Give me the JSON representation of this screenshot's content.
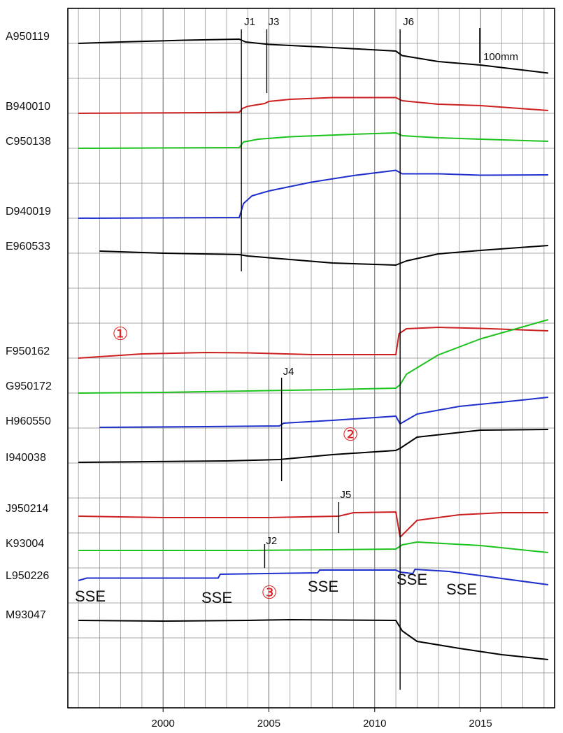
{
  "chart_data": {
    "type": "line",
    "title": "",
    "xlabel": "",
    "ylabel": "",
    "xlim": [
      1995.5,
      2018.5
    ],
    "xticks": [
      2000,
      2005,
      2010,
      2015
    ],
    "xtick_labels": [
      "2000",
      "2005",
      "2010",
      "2015"
    ],
    "grid": true,
    "legend": "none",
    "scale_bar": {
      "label": "100mm",
      "value_mm": 100
    },
    "colors": {
      "red": "#cc1f1f",
      "green": "#1ec21e",
      "blue": "#1f2fcc",
      "black": "#000000",
      "annotation": "#e02020"
    },
    "events": [
      {
        "name": "J1",
        "year": 2003.7
      },
      {
        "name": "J3",
        "year": 2004.9
      },
      {
        "name": "J6",
        "year": 2011.2
      },
      {
        "name": "J4",
        "year": 2005.6
      },
      {
        "name": "J5",
        "year": 2008.3
      },
      {
        "name": "J2",
        "year": 2004.8
      }
    ],
    "annotations": [
      {
        "text": "①",
        "kind": "circled"
      },
      {
        "text": "②",
        "kind": "circled"
      },
      {
        "text": "③",
        "kind": "circled"
      },
      {
        "text": "SSE",
        "kind": "sse"
      },
      {
        "text": "SSE",
        "kind": "sse"
      },
      {
        "text": "SSE",
        "kind": "sse"
      },
      {
        "text": "SSE",
        "kind": "sse"
      },
      {
        "text": "SSE",
        "kind": "sse"
      }
    ],
    "series": [
      {
        "name": "A950119",
        "color": "black",
        "points": [
          [
            1996.0,
            0
          ],
          [
            1998,
            4
          ],
          [
            2001,
            9
          ],
          [
            2003.6,
            12
          ],
          [
            2003.9,
            4
          ],
          [
            2005,
            -3
          ],
          [
            2008,
            -12
          ],
          [
            2011.0,
            -22
          ],
          [
            2011.3,
            -35
          ],
          [
            2013,
            -52
          ],
          [
            2015,
            -62
          ],
          [
            2018.2,
            -85
          ]
        ]
      },
      {
        "name": "B940010",
        "color": "red",
        "points": [
          [
            1996.0,
            0
          ],
          [
            1999,
            1
          ],
          [
            2002,
            2
          ],
          [
            2003.6,
            3
          ],
          [
            2003.75,
            14
          ],
          [
            2004,
            20
          ],
          [
            2004.8,
            28
          ],
          [
            2005,
            34
          ],
          [
            2006,
            40
          ],
          [
            2008,
            45
          ],
          [
            2011.0,
            45
          ],
          [
            2011.3,
            36
          ],
          [
            2013,
            26
          ],
          [
            2015,
            22
          ],
          [
            2018.2,
            8
          ]
        ]
      },
      {
        "name": "C950138",
        "color": "green",
        "points": [
          [
            1996.0,
            0
          ],
          [
            2000,
            1
          ],
          [
            2003.6,
            2
          ],
          [
            2003.8,
            18
          ],
          [
            2004.5,
            26
          ],
          [
            2006,
            33
          ],
          [
            2009,
            40
          ],
          [
            2011.0,
            44
          ],
          [
            2011.3,
            36
          ],
          [
            2013,
            30
          ],
          [
            2015,
            26
          ],
          [
            2018.2,
            20
          ]
        ]
      },
      {
        "name": "D940019",
        "color": "blue",
        "points": [
          [
            1996.0,
            0
          ],
          [
            2000,
            1
          ],
          [
            2003.6,
            2
          ],
          [
            2003.8,
            42
          ],
          [
            2004.2,
            64
          ],
          [
            2005,
            78
          ],
          [
            2007,
            103
          ],
          [
            2009,
            122
          ],
          [
            2011.0,
            137
          ],
          [
            2011.3,
            127
          ],
          [
            2013,
            127
          ],
          [
            2015,
            123
          ],
          [
            2018.2,
            124
          ]
        ]
      },
      {
        "name": "E960533",
        "color": "black",
        "points": [
          [
            1997.0,
            2
          ],
          [
            2000,
            -4
          ],
          [
            2003.6,
            -8
          ],
          [
            2004,
            -12
          ],
          [
            2006,
            -22
          ],
          [
            2008,
            -32
          ],
          [
            2011.0,
            -38
          ],
          [
            2011.5,
            -26
          ],
          [
            2013,
            -6
          ],
          [
            2015,
            4
          ],
          [
            2018.2,
            18
          ]
        ]
      },
      {
        "name": "F950162",
        "color": "red",
        "points": [
          [
            1996.0,
            0
          ],
          [
            1999,
            12
          ],
          [
            2002,
            16
          ],
          [
            2004,
            15
          ],
          [
            2007,
            10
          ],
          [
            2011.0,
            10
          ],
          [
            2011.15,
            70
          ],
          [
            2011.5,
            84
          ],
          [
            2013,
            88
          ],
          [
            2015,
            85
          ],
          [
            2018.2,
            78
          ]
        ]
      },
      {
        "name": "G950172",
        "color": "green",
        "points": [
          [
            1996.0,
            0
          ],
          [
            2000,
            2
          ],
          [
            2004,
            6
          ],
          [
            2008,
            10
          ],
          [
            2011.0,
            14
          ],
          [
            2011.2,
            24
          ],
          [
            2011.5,
            54
          ],
          [
            2013,
            109
          ],
          [
            2015,
            155
          ],
          [
            2018.2,
            210
          ]
        ]
      },
      {
        "name": "H960550",
        "color": "blue",
        "points": [
          [
            1997.0,
            0
          ],
          [
            2002,
            2
          ],
          [
            2005.5,
            4
          ],
          [
            2005.7,
            12
          ],
          [
            2008,
            20
          ],
          [
            2011.0,
            32
          ],
          [
            2011.2,
            10
          ],
          [
            2012,
            38
          ],
          [
            2014,
            60
          ],
          [
            2016,
            72
          ],
          [
            2018.2,
            86
          ]
        ]
      },
      {
        "name": "I940038",
        "color": "black",
        "points": [
          [
            1996.0,
            0
          ],
          [
            2003,
            4
          ],
          [
            2005.5,
            8
          ],
          [
            2008,
            22
          ],
          [
            2011.0,
            34
          ],
          [
            2011.2,
            40
          ],
          [
            2012,
            72
          ],
          [
            2015,
            92
          ],
          [
            2018.2,
            94
          ]
        ]
      },
      {
        "name": "J950214",
        "color": "red",
        "points": [
          [
            1996.0,
            0
          ],
          [
            2000,
            -4
          ],
          [
            2005,
            -4
          ],
          [
            2008.3,
            0
          ],
          [
            2009,
            10
          ],
          [
            2011.0,
            12
          ],
          [
            2011.2,
            -60
          ],
          [
            2012,
            -12
          ],
          [
            2014,
            4
          ],
          [
            2016,
            10
          ],
          [
            2018.2,
            10
          ]
        ]
      },
      {
        "name": "K93004",
        "color": "green",
        "points": [
          [
            1996.0,
            0
          ],
          [
            2004,
            0
          ],
          [
            2008,
            2
          ],
          [
            2011.0,
            4
          ],
          [
            2011.3,
            16
          ],
          [
            2012,
            24
          ],
          [
            2015,
            14
          ],
          [
            2018.2,
            -6
          ]
        ]
      },
      {
        "name": "L950226",
        "color": "blue",
        "points": [
          [
            1996.0,
            0
          ],
          [
            1996.4,
            7
          ],
          [
            2002.6,
            7
          ],
          [
            2002.7,
            18
          ],
          [
            2007.3,
            22
          ],
          [
            2007.4,
            30
          ],
          [
            2011.0,
            30
          ],
          [
            2011.2,
            24
          ],
          [
            2011.8,
            20
          ],
          [
            2011.9,
            32
          ],
          [
            2013.5,
            26
          ],
          [
            2015,
            14
          ],
          [
            2018.2,
            -12
          ]
        ]
      },
      {
        "name": "M93047",
        "color": "black",
        "points": [
          [
            1996.0,
            0
          ],
          [
            2000,
            -2
          ],
          [
            2004,
            0
          ],
          [
            2006,
            2
          ],
          [
            2011.0,
            0
          ],
          [
            2011.3,
            -30
          ],
          [
            2012,
            -60
          ],
          [
            2014,
            -80
          ],
          [
            2016,
            -98
          ],
          [
            2018.2,
            -112
          ]
        ]
      }
    ]
  }
}
